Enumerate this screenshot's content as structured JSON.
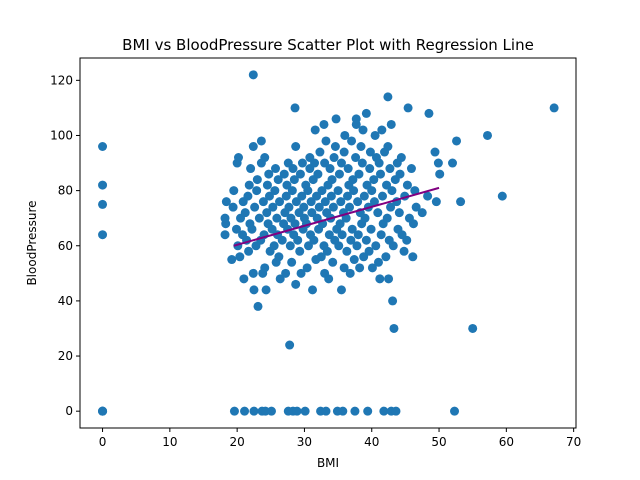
{
  "chart_data": {
    "type": "scatter",
    "title": "BMI vs BloodPressure Scatter Plot with Regression Line",
    "xlabel": "BMI",
    "ylabel": "BloodPressure",
    "xlim": [
      -3.35,
      70.35
    ],
    "ylim": [
      -6.1,
      128.1
    ],
    "xticks": [
      0,
      10,
      20,
      30,
      40,
      50,
      60,
      70
    ],
    "yticks": [
      0,
      20,
      40,
      60,
      80,
      100,
      120
    ],
    "grid": false,
    "colors": {
      "points": "#1f77b4",
      "regression": "#800080"
    },
    "regression_line": {
      "x": [
        19.5,
        50.0
      ],
      "y": [
        60.0,
        81.0
      ]
    },
    "points": [
      {
        "x": 0,
        "y": 0
      },
      {
        "x": 0,
        "y": 0
      },
      {
        "x": 0,
        "y": 0
      },
      {
        "x": 0,
        "y": 64
      },
      {
        "x": 0,
        "y": 75
      },
      {
        "x": 0,
        "y": 82
      },
      {
        "x": 0,
        "y": 96
      },
      {
        "x": 19.6,
        "y": 0
      },
      {
        "x": 21.1,
        "y": 0
      },
      {
        "x": 22.5,
        "y": 0
      },
      {
        "x": 23.7,
        "y": 0
      },
      {
        "x": 24.2,
        "y": 0
      },
      {
        "x": 25.1,
        "y": 0
      },
      {
        "x": 27.6,
        "y": 0
      },
      {
        "x": 28.3,
        "y": 0
      },
      {
        "x": 28.9,
        "y": 0
      },
      {
        "x": 30.1,
        "y": 0
      },
      {
        "x": 32.4,
        "y": 0
      },
      {
        "x": 33.2,
        "y": 0
      },
      {
        "x": 34.9,
        "y": 0
      },
      {
        "x": 35.7,
        "y": 0
      },
      {
        "x": 37.5,
        "y": 0
      },
      {
        "x": 39.4,
        "y": 0
      },
      {
        "x": 41.8,
        "y": 0
      },
      {
        "x": 42.9,
        "y": 0
      },
      {
        "x": 43.6,
        "y": 0
      },
      {
        "x": 52.3,
        "y": 0
      },
      {
        "x": 27.8,
        "y": 24
      },
      {
        "x": 43.3,
        "y": 30
      },
      {
        "x": 55.0,
        "y": 30
      },
      {
        "x": 23.1,
        "y": 38
      },
      {
        "x": 43.1,
        "y": 40
      },
      {
        "x": 22.5,
        "y": 44
      },
      {
        "x": 24.3,
        "y": 44
      },
      {
        "x": 31.2,
        "y": 44
      },
      {
        "x": 35.5,
        "y": 44
      },
      {
        "x": 28.7,
        "y": 46
      },
      {
        "x": 21.0,
        "y": 48
      },
      {
        "x": 41.2,
        "y": 48
      },
      {
        "x": 42.5,
        "y": 48
      },
      {
        "x": 26.4,
        "y": 48
      },
      {
        "x": 33.6,
        "y": 48
      },
      {
        "x": 22.4,
        "y": 50
      },
      {
        "x": 23.8,
        "y": 50
      },
      {
        "x": 27.2,
        "y": 50
      },
      {
        "x": 29.5,
        "y": 50
      },
      {
        "x": 33.0,
        "y": 50
      },
      {
        "x": 36.8,
        "y": 50
      },
      {
        "x": 24.1,
        "y": 52
      },
      {
        "x": 30.4,
        "y": 52
      },
      {
        "x": 35.9,
        "y": 52
      },
      {
        "x": 38.2,
        "y": 52
      },
      {
        "x": 40.1,
        "y": 52
      },
      {
        "x": 19.2,
        "y": 55
      },
      {
        "x": 25.8,
        "y": 54
      },
      {
        "x": 28.1,
        "y": 54
      },
      {
        "x": 31.7,
        "y": 55
      },
      {
        "x": 34.2,
        "y": 54
      },
      {
        "x": 37.4,
        "y": 55
      },
      {
        "x": 41.0,
        "y": 54
      },
      {
        "x": 20.4,
        "y": 56
      },
      {
        "x": 26.2,
        "y": 56
      },
      {
        "x": 32.5,
        "y": 56
      },
      {
        "x": 38.8,
        "y": 56
      },
      {
        "x": 42.1,
        "y": 56
      },
      {
        "x": 46.1,
        "y": 56
      },
      {
        "x": 21.7,
        "y": 58
      },
      {
        "x": 24.9,
        "y": 58
      },
      {
        "x": 29.3,
        "y": 58
      },
      {
        "x": 33.4,
        "y": 58
      },
      {
        "x": 36.3,
        "y": 58
      },
      {
        "x": 39.6,
        "y": 58
      },
      {
        "x": 44.8,
        "y": 58
      },
      {
        "x": 20.1,
        "y": 60
      },
      {
        "x": 22.8,
        "y": 60
      },
      {
        "x": 25.5,
        "y": 60
      },
      {
        "x": 27.9,
        "y": 60
      },
      {
        "x": 30.6,
        "y": 60
      },
      {
        "x": 32.9,
        "y": 60
      },
      {
        "x": 35.1,
        "y": 60
      },
      {
        "x": 37.8,
        "y": 60
      },
      {
        "x": 40.6,
        "y": 60
      },
      {
        "x": 43.2,
        "y": 60
      },
      {
        "x": 21.4,
        "y": 62
      },
      {
        "x": 23.5,
        "y": 62
      },
      {
        "x": 26.7,
        "y": 62
      },
      {
        "x": 29.0,
        "y": 62
      },
      {
        "x": 31.4,
        "y": 62
      },
      {
        "x": 34.5,
        "y": 62
      },
      {
        "x": 36.9,
        "y": 62
      },
      {
        "x": 39.2,
        "y": 62
      },
      {
        "x": 42.6,
        "y": 62
      },
      {
        "x": 45.2,
        "y": 62
      },
      {
        "x": 18.2,
        "y": 64
      },
      {
        "x": 20.8,
        "y": 64
      },
      {
        "x": 24.0,
        "y": 64
      },
      {
        "x": 26.0,
        "y": 64
      },
      {
        "x": 28.4,
        "y": 64
      },
      {
        "x": 30.9,
        "y": 64
      },
      {
        "x": 33.7,
        "y": 64
      },
      {
        "x": 35.6,
        "y": 64
      },
      {
        "x": 38.0,
        "y": 64
      },
      {
        "x": 41.4,
        "y": 64
      },
      {
        "x": 44.5,
        "y": 64
      },
      {
        "x": 19.9,
        "y": 66
      },
      {
        "x": 22.2,
        "y": 66
      },
      {
        "x": 25.2,
        "y": 66
      },
      {
        "x": 27.5,
        "y": 66
      },
      {
        "x": 29.8,
        "y": 66
      },
      {
        "x": 32.1,
        "y": 66
      },
      {
        "x": 34.8,
        "y": 66
      },
      {
        "x": 37.1,
        "y": 66
      },
      {
        "x": 39.9,
        "y": 66
      },
      {
        "x": 43.9,
        "y": 66
      },
      {
        "x": 18.3,
        "y": 68
      },
      {
        "x": 21.9,
        "y": 68
      },
      {
        "x": 24.6,
        "y": 68
      },
      {
        "x": 26.9,
        "y": 68
      },
      {
        "x": 28.6,
        "y": 68
      },
      {
        "x": 30.3,
        "y": 68
      },
      {
        "x": 32.7,
        "y": 68
      },
      {
        "x": 35.3,
        "y": 68
      },
      {
        "x": 38.5,
        "y": 68
      },
      {
        "x": 41.7,
        "y": 68
      },
      {
        "x": 46.2,
        "y": 68
      },
      {
        "x": 18.2,
        "y": 70
      },
      {
        "x": 20.5,
        "y": 70
      },
      {
        "x": 23.3,
        "y": 70
      },
      {
        "x": 25.9,
        "y": 70
      },
      {
        "x": 28.0,
        "y": 70
      },
      {
        "x": 30.0,
        "y": 70
      },
      {
        "x": 31.9,
        "y": 70
      },
      {
        "x": 33.9,
        "y": 70
      },
      {
        "x": 36.2,
        "y": 70
      },
      {
        "x": 39.0,
        "y": 70
      },
      {
        "x": 42.3,
        "y": 70
      },
      {
        "x": 45.6,
        "y": 70
      },
      {
        "x": 21.2,
        "y": 72
      },
      {
        "x": 24.4,
        "y": 72
      },
      {
        "x": 27.1,
        "y": 72
      },
      {
        "x": 29.2,
        "y": 72
      },
      {
        "x": 31.1,
        "y": 72
      },
      {
        "x": 33.3,
        "y": 72
      },
      {
        "x": 35.8,
        "y": 72
      },
      {
        "x": 38.3,
        "y": 72
      },
      {
        "x": 40.9,
        "y": 72
      },
      {
        "x": 44.1,
        "y": 72
      },
      {
        "x": 47.5,
        "y": 72
      },
      {
        "x": 19.4,
        "y": 74
      },
      {
        "x": 22.6,
        "y": 74
      },
      {
        "x": 25.3,
        "y": 74
      },
      {
        "x": 27.7,
        "y": 74
      },
      {
        "x": 29.9,
        "y": 74
      },
      {
        "x": 32.2,
        "y": 74
      },
      {
        "x": 34.3,
        "y": 74
      },
      {
        "x": 36.7,
        "y": 74
      },
      {
        "x": 39.5,
        "y": 74
      },
      {
        "x": 42.8,
        "y": 74
      },
      {
        "x": 46.6,
        "y": 74
      },
      {
        "x": 18.4,
        "y": 76
      },
      {
        "x": 20.9,
        "y": 76
      },
      {
        "x": 23.9,
        "y": 76
      },
      {
        "x": 26.3,
        "y": 76
      },
      {
        "x": 28.8,
        "y": 76
      },
      {
        "x": 31.0,
        "y": 76
      },
      {
        "x": 33.1,
        "y": 76
      },
      {
        "x": 35.4,
        "y": 76
      },
      {
        "x": 37.9,
        "y": 76
      },
      {
        "x": 40.4,
        "y": 76
      },
      {
        "x": 43.7,
        "y": 76
      },
      {
        "x": 49.6,
        "y": 76
      },
      {
        "x": 53.2,
        "y": 76
      },
      {
        "x": 21.6,
        "y": 78
      },
      {
        "x": 24.8,
        "y": 78
      },
      {
        "x": 27.3,
        "y": 78
      },
      {
        "x": 29.6,
        "y": 78
      },
      {
        "x": 31.8,
        "y": 78
      },
      {
        "x": 34.0,
        "y": 78
      },
      {
        "x": 36.4,
        "y": 78
      },
      {
        "x": 38.9,
        "y": 78
      },
      {
        "x": 41.6,
        "y": 78
      },
      {
        "x": 44.9,
        "y": 78
      },
      {
        "x": 48.3,
        "y": 78
      },
      {
        "x": 59.4,
        "y": 78
      },
      {
        "x": 19.5,
        "y": 80
      },
      {
        "x": 22.9,
        "y": 80
      },
      {
        "x": 25.6,
        "y": 80
      },
      {
        "x": 28.2,
        "y": 80
      },
      {
        "x": 30.5,
        "y": 80
      },
      {
        "x": 32.6,
        "y": 80
      },
      {
        "x": 35.0,
        "y": 80
      },
      {
        "x": 37.3,
        "y": 80
      },
      {
        "x": 40.0,
        "y": 80
      },
      {
        "x": 43.0,
        "y": 80
      },
      {
        "x": 46.4,
        "y": 80
      },
      {
        "x": 21.8,
        "y": 82
      },
      {
        "x": 24.5,
        "y": 82
      },
      {
        "x": 27.4,
        "y": 82
      },
      {
        "x": 30.2,
        "y": 82
      },
      {
        "x": 33.5,
        "y": 82
      },
      {
        "x": 36.6,
        "y": 82
      },
      {
        "x": 39.3,
        "y": 82
      },
      {
        "x": 42.2,
        "y": 82
      },
      {
        "x": 45.3,
        "y": 82
      },
      {
        "x": 23.0,
        "y": 84
      },
      {
        "x": 26.1,
        "y": 84
      },
      {
        "x": 28.5,
        "y": 84
      },
      {
        "x": 31.3,
        "y": 84
      },
      {
        "x": 34.1,
        "y": 84
      },
      {
        "x": 37.2,
        "y": 84
      },
      {
        "x": 40.3,
        "y": 84
      },
      {
        "x": 43.5,
        "y": 84
      },
      {
        "x": 24.7,
        "y": 86
      },
      {
        "x": 27.0,
        "y": 86
      },
      {
        "x": 29.4,
        "y": 86
      },
      {
        "x": 32.0,
        "y": 86
      },
      {
        "x": 35.2,
        "y": 86
      },
      {
        "x": 38.1,
        "y": 86
      },
      {
        "x": 41.3,
        "y": 86
      },
      {
        "x": 44.2,
        "y": 86
      },
      {
        "x": 50.1,
        "y": 86
      },
      {
        "x": 22.0,
        "y": 88
      },
      {
        "x": 25.7,
        "y": 88
      },
      {
        "x": 28.3,
        "y": 88
      },
      {
        "x": 30.8,
        "y": 88
      },
      {
        "x": 33.8,
        "y": 88
      },
      {
        "x": 36.5,
        "y": 88
      },
      {
        "x": 39.7,
        "y": 88
      },
      {
        "x": 42.7,
        "y": 88
      },
      {
        "x": 45.9,
        "y": 88
      },
      {
        "x": 20.0,
        "y": 90
      },
      {
        "x": 23.6,
        "y": 90
      },
      {
        "x": 27.6,
        "y": 90
      },
      {
        "x": 29.7,
        "y": 90
      },
      {
        "x": 31.5,
        "y": 90
      },
      {
        "x": 33.0,
        "y": 90
      },
      {
        "x": 35.5,
        "y": 90
      },
      {
        "x": 38.6,
        "y": 90
      },
      {
        "x": 41.1,
        "y": 90
      },
      {
        "x": 43.8,
        "y": 90
      },
      {
        "x": 49.9,
        "y": 90
      },
      {
        "x": 52.0,
        "y": 90
      },
      {
        "x": 20.2,
        "y": 92
      },
      {
        "x": 24.1,
        "y": 92
      },
      {
        "x": 30.8,
        "y": 92
      },
      {
        "x": 34.4,
        "y": 92
      },
      {
        "x": 37.6,
        "y": 92
      },
      {
        "x": 40.7,
        "y": 92
      },
      {
        "x": 44.4,
        "y": 92
      },
      {
        "x": 32.3,
        "y": 94
      },
      {
        "x": 35.9,
        "y": 94
      },
      {
        "x": 39.8,
        "y": 94
      },
      {
        "x": 41.9,
        "y": 94
      },
      {
        "x": 49.4,
        "y": 94
      },
      {
        "x": 22.4,
        "y": 96
      },
      {
        "x": 28.7,
        "y": 96
      },
      {
        "x": 34.6,
        "y": 96
      },
      {
        "x": 38.4,
        "y": 96
      },
      {
        "x": 42.4,
        "y": 96
      },
      {
        "x": 23.6,
        "y": 98
      },
      {
        "x": 33.2,
        "y": 98
      },
      {
        "x": 37.0,
        "y": 98
      },
      {
        "x": 52.6,
        "y": 98
      },
      {
        "x": 36.0,
        "y": 100
      },
      {
        "x": 40.5,
        "y": 100
      },
      {
        "x": 57.2,
        "y": 100
      },
      {
        "x": 31.6,
        "y": 102
      },
      {
        "x": 38.7,
        "y": 102
      },
      {
        "x": 41.5,
        "y": 102
      },
      {
        "x": 32.9,
        "y": 104
      },
      {
        "x": 37.7,
        "y": 104
      },
      {
        "x": 42.9,
        "y": 104
      },
      {
        "x": 34.7,
        "y": 106
      },
      {
        "x": 37.7,
        "y": 106
      },
      {
        "x": 39.2,
        "y": 108
      },
      {
        "x": 48.5,
        "y": 108
      },
      {
        "x": 28.6,
        "y": 110
      },
      {
        "x": 45.4,
        "y": 110
      },
      {
        "x": 67.1,
        "y": 110
      },
      {
        "x": 42.4,
        "y": 114
      },
      {
        "x": 22.4,
        "y": 122
      }
    ]
  }
}
